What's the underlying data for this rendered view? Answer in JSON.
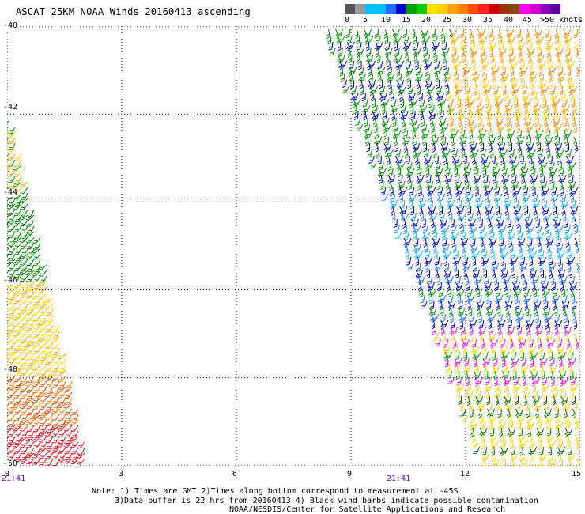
{
  "title": "ASCAT 25KM NOAA Winds 20160413 ascending",
  "colorbar": {
    "labels": [
      "0",
      "5",
      "10",
      "15",
      "20",
      "25",
      "30",
      "35",
      "40",
      "45",
      ">50 knots"
    ],
    "colors": [
      "#555555",
      "#999999",
      "#00bfff",
      "#00bfff",
      "#1e6fff",
      "#0000cd",
      "#00a000",
      "#00d000",
      "#ffe000",
      "#ffd000",
      "#ffa000",
      "#ff7f00",
      "#ff5000",
      "#ff2020",
      "#cc0000",
      "#a03000",
      "#8b4513",
      "#ff00ff",
      "#d000d0",
      "#9000c0",
      "#6000a0"
    ]
  },
  "axes": {
    "lat_labels": [
      "-40",
      "-42",
      "-44",
      "-46",
      "-48",
      "-50"
    ],
    "lon_labels": [
      "0",
      "3",
      "6",
      "9",
      "12",
      "15"
    ],
    "time_labels": [
      "21:41",
      "21:41"
    ]
  },
  "notes": {
    "line1": "Note: 1) Times are GMT 2)Times along bottom correspond to measurement at -45S",
    "line2": "3)Data buffer is 22 hrs from 20160413 4) Black wind barbs indicate possible contamination",
    "line3": "NOAA/NESDIS/Center for Satellite Applications and Research"
  }
}
